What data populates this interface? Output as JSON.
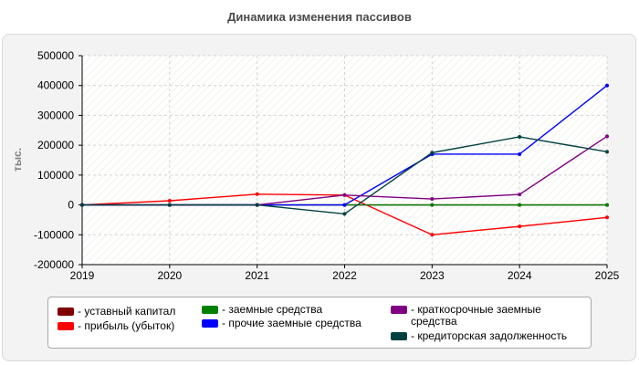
{
  "chart_data": {
    "type": "line",
    "title": "Динамика изменения пассивов",
    "xlabel": "",
    "ylabel": "тыс.",
    "x": [
      2019,
      2020,
      2021,
      2022,
      2023,
      2024,
      2025
    ],
    "ylim": [
      -200000,
      500000
    ],
    "yticks": [
      -200000,
      -100000,
      0,
      100000,
      200000,
      300000,
      400000,
      500000
    ],
    "grid": true,
    "legend_position": "bottom",
    "series": [
      {
        "name": "уставный капитал",
        "color": "#800000",
        "values": [
          0,
          0,
          0,
          0,
          0,
          0,
          0
        ]
      },
      {
        "name": "прибыль (убыток)",
        "color": "#ff0000",
        "values": [
          0,
          14000,
          36000,
          33000,
          -100000,
          -72000,
          -42000
        ]
      },
      {
        "name": "заемные средства",
        "color": "#008000",
        "values": [
          0,
          0,
          0,
          0,
          0,
          0,
          0
        ]
      },
      {
        "name": "прочие заемные средства",
        "color": "#0000ff",
        "values": [
          0,
          0,
          0,
          0,
          170000,
          170000,
          400000
        ]
      },
      {
        "name": "краткосрочные заемные средства",
        "color": "#800080",
        "values": [
          0,
          0,
          0,
          33000,
          20000,
          35000,
          230000
        ]
      },
      {
        "name": "кредиторская задолженность",
        "color": "#004040",
        "values": [
          0,
          0,
          0,
          -30000,
          175000,
          228000,
          178000
        ]
      }
    ]
  }
}
